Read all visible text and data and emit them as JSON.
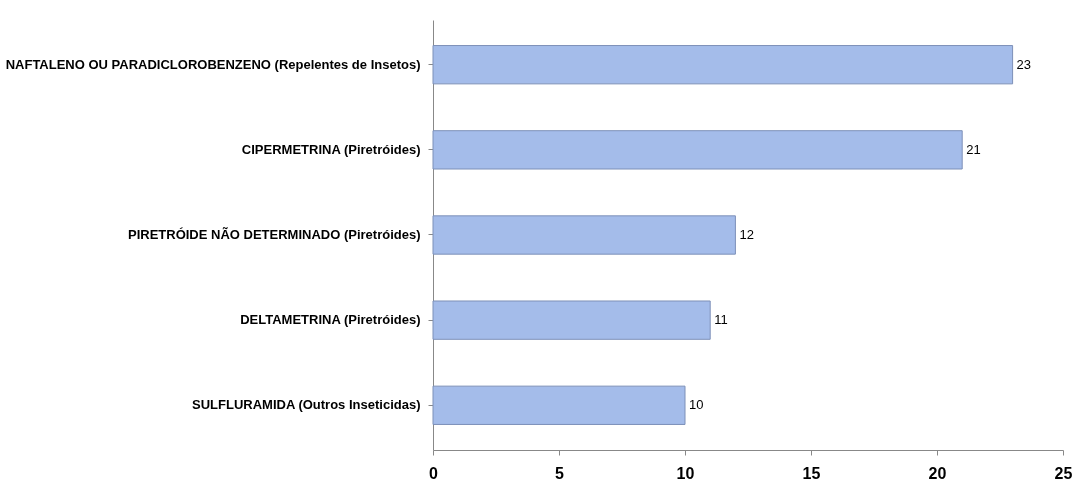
{
  "chart_data": {
    "type": "bar",
    "orientation": "horizontal",
    "categories": [
      "NAFTALENO OU PARADICLOROBENZENO (Repelentes de Insetos)",
      "CIPERMETRINA (Piretróides)",
      "PIRETRÓIDE NÃO DETERMINADO (Piretróides)",
      "DELTAMETRINA (Piretróides)",
      "SULFLURAMIDA (Outros Inseticidas)"
    ],
    "values": [
      23,
      21,
      12,
      11,
      10
    ],
    "color": "#a4bcea",
    "xlim": [
      0,
      25
    ],
    "xticks": [
      0,
      5,
      10,
      15,
      20,
      25
    ],
    "grid": false,
    "data_labels": true
  }
}
